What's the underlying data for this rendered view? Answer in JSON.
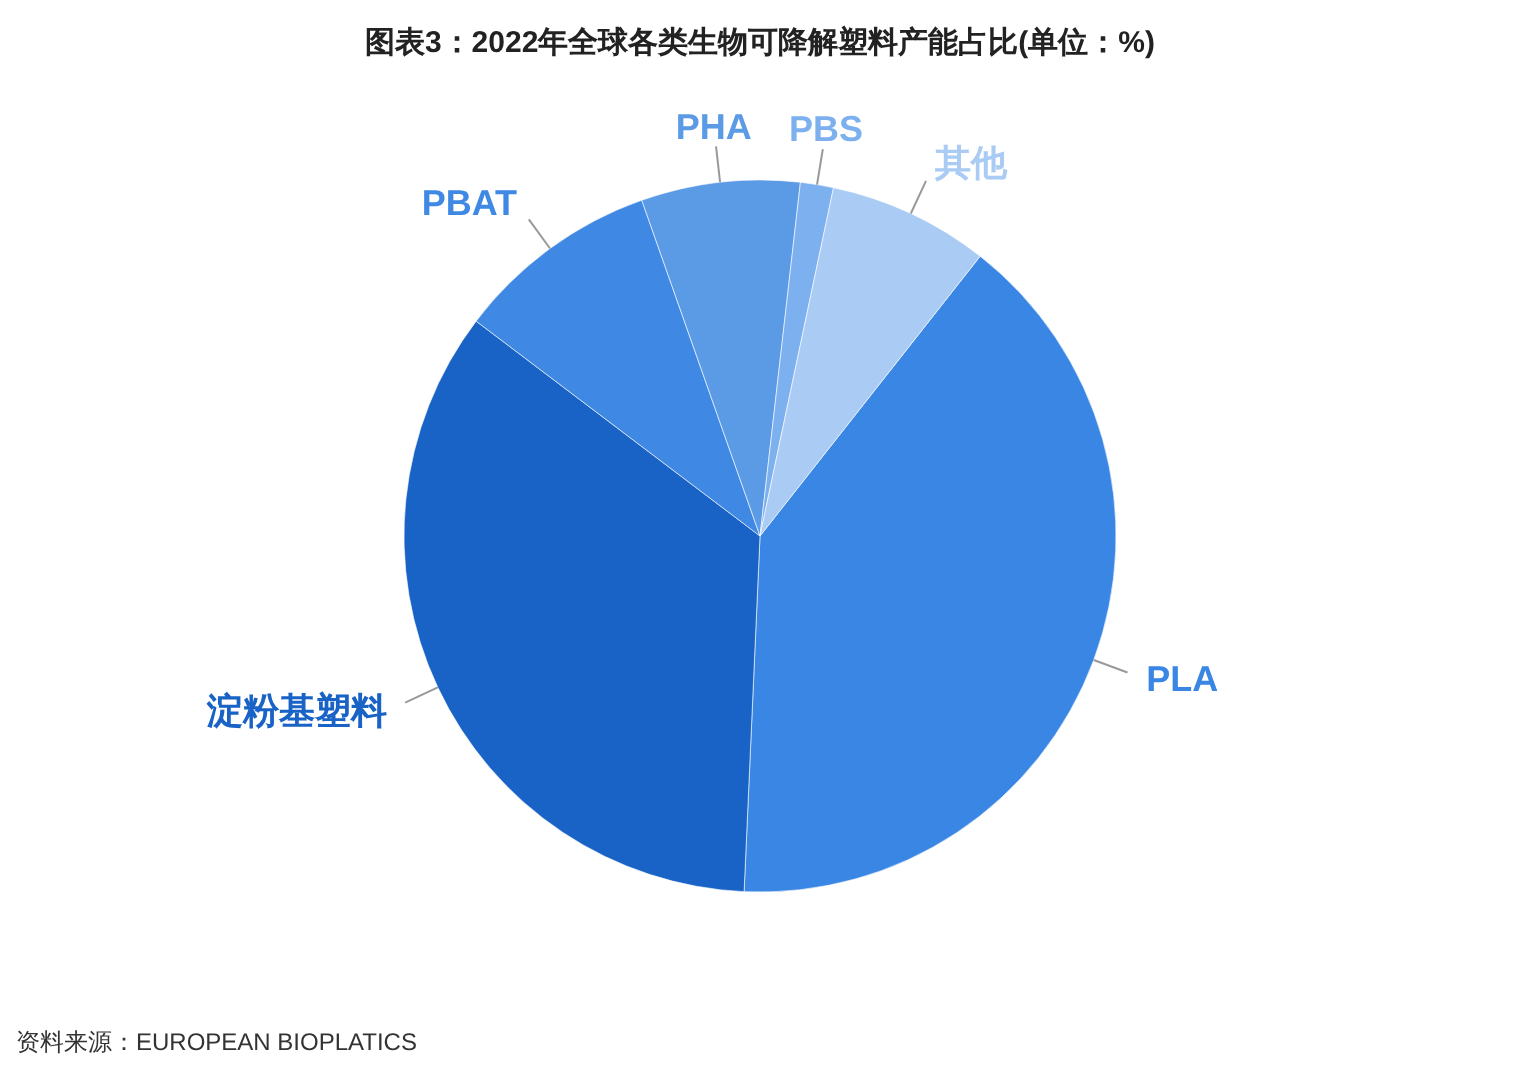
{
  "chart_data": {
    "type": "pie",
    "title": "图表3：2022年全球各类生物可降解塑料产能占比(单位：%)",
    "categories": [
      "PLA",
      "淀粉基塑料",
      "PBAT",
      "PHA",
      "PBS",
      "其他"
    ],
    "values": [
      40.1,
      34.6,
      9.3,
      7.2,
      1.5,
      7.3
    ],
    "colors": [
      "#3a86e4",
      "#1a63c6",
      "#3f88e3",
      "#5b9be6",
      "#7cb0ee",
      "#a9cbf4"
    ],
    "annotations": [
      "资料来源：EUROPEAN  BIOPLATICS"
    ]
  }
}
